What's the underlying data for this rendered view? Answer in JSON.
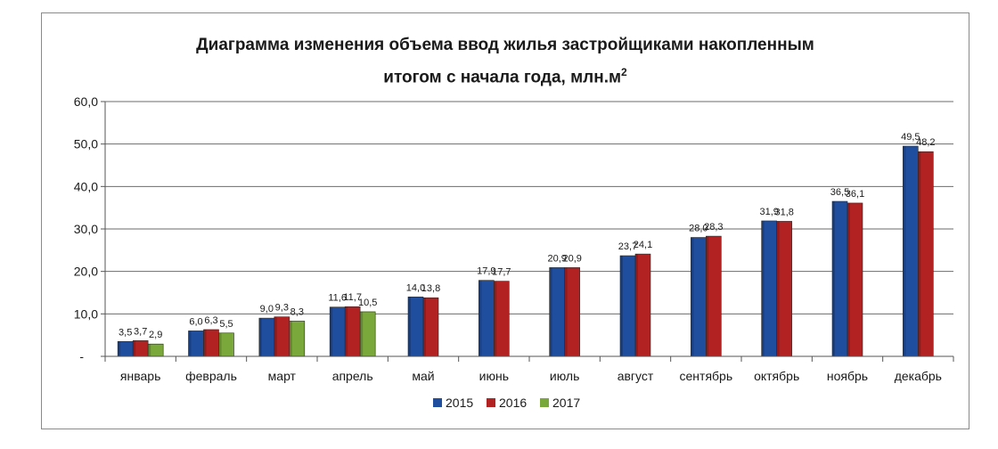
{
  "chart_data": {
    "type": "bar",
    "title_line1": "Диаграмма  изменения объема ввод жилья застройщиками накопленным",
    "title_line2_prefix": "итогом с начала года, млн.м",
    "title_line2_sup": "2",
    "categories": [
      "январь",
      "февраль",
      "март",
      "апрель",
      "май",
      "июнь",
      "июль",
      "август",
      "сентябрь",
      "октябрь",
      "ноябрь",
      "декабрь"
    ],
    "series": [
      {
        "name": "2015",
        "color": "#1f4e9e",
        "values": [
          3.5,
          6.0,
          9.0,
          11.6,
          14.0,
          17.9,
          20.9,
          23.7,
          28.0,
          31.9,
          36.5,
          49.5
        ],
        "labels": [
          "3,5",
          "6,0",
          "9,0",
          "11,6",
          "14,0",
          "17,9",
          "20,9",
          "23,7",
          "28,0",
          "31,9",
          "36,5",
          "49,5"
        ]
      },
      {
        "name": "2016",
        "color": "#b22222",
        "values": [
          3.7,
          6.3,
          9.3,
          11.7,
          13.8,
          17.7,
          20.9,
          24.1,
          28.3,
          31.8,
          36.1,
          48.2
        ],
        "labels": [
          "3,7",
          "6,3",
          "9,3",
          "11,7",
          "13,8",
          "17,7",
          "20,9",
          "24,1",
          "28,3",
          "31,8",
          "36,1",
          "48,2"
        ]
      },
      {
        "name": "2017",
        "color": "#7aa83a",
        "values": [
          2.9,
          5.5,
          8.3,
          10.5,
          null,
          null,
          null,
          null,
          null,
          null,
          null,
          null
        ],
        "labels": [
          "2,9",
          "5,5",
          "8,3",
          "10,5",
          "",
          "",
          "",
          "",
          "",
          "",
          "",
          ""
        ]
      }
    ],
    "ylim": [
      0,
      60
    ],
    "yticks": [
      0,
      10,
      20,
      30,
      40,
      50,
      60
    ],
    "ytick_labels": [
      "-",
      "10,0",
      "20,0",
      "30,0",
      "40,0",
      "50,0",
      "60,0"
    ],
    "grid": true,
    "legend_position": "bottom"
  }
}
